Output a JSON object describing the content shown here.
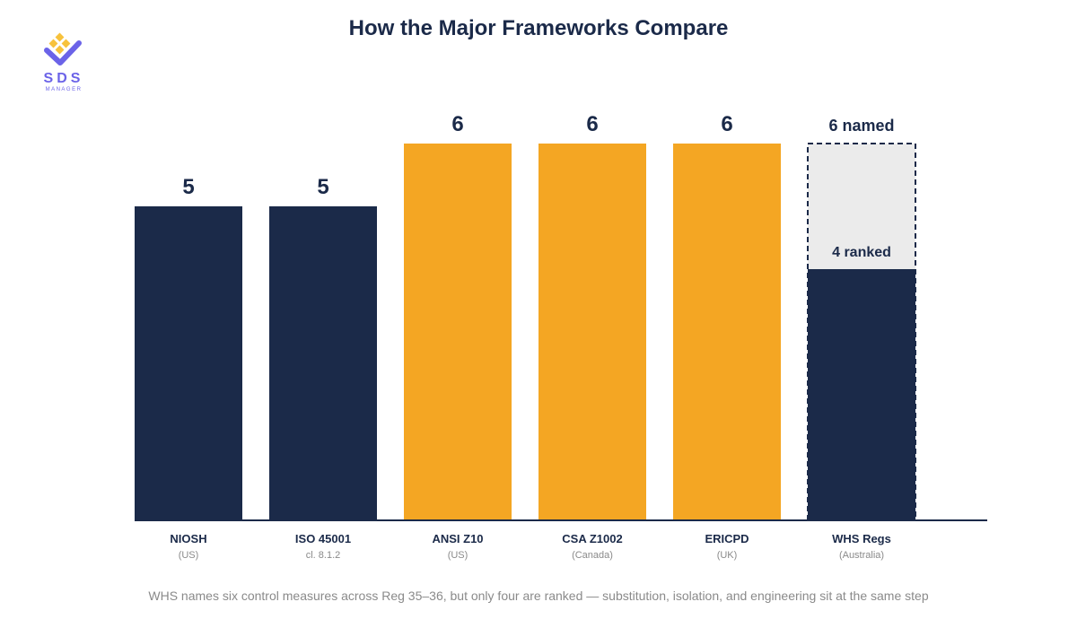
{
  "brand": {
    "name": "SDS",
    "subtitle": "MANAGER"
  },
  "colors": {
    "navy": "#1b2a49",
    "amber": "#f4a623",
    "placeholder": "#ebebeb",
    "logo_purple": "#6b63e8",
    "logo_gold": "#f7c23c"
  },
  "chart_data": {
    "type": "bar",
    "title": "How the Major Frameworks Compare",
    "ylim": [
      0,
      6
    ],
    "grid": false,
    "categories": [
      "NIOSH",
      "ISO 45001",
      "ANSI Z10",
      "CSA Z1002",
      "ERICPD",
      "WHS Regs"
    ],
    "sublabels": [
      "(US)",
      "cl. 8.1.2",
      "(US)",
      "(Canada)",
      "(UK)",
      "(Australia)"
    ],
    "values": [
      5,
      5,
      6,
      6,
      6,
      4
    ],
    "value_labels": [
      "5",
      "5",
      "6",
      "6",
      "6",
      "4 ranked"
    ],
    "colors": [
      "#1b2a49",
      "#1b2a49",
      "#f4a623",
      "#f4a623",
      "#f4a623",
      "#1b2a49"
    ],
    "extra": {
      "index": 5,
      "value": 6,
      "label": "6 named"
    }
  },
  "footnote": "WHS names six control measures across Reg 35–36, but only four are ranked — substitution, isolation, and engineering sit at the same step"
}
